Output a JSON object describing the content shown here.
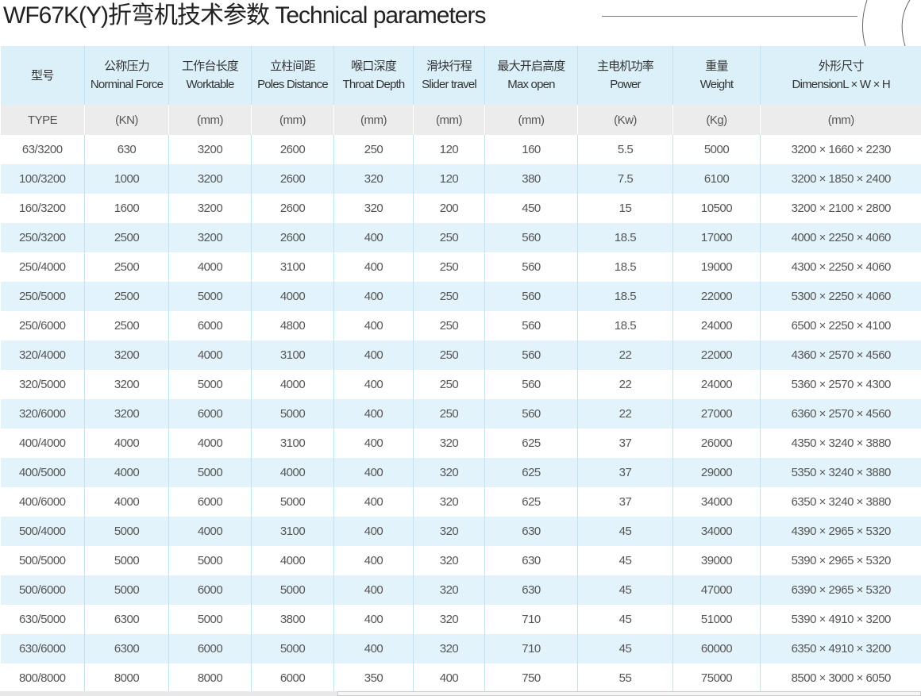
{
  "title": "WF67K(Y)折弯机技术参数 Technical parameters",
  "columns": [
    {
      "cn": "型号",
      "en": "",
      "unit": "TYPE"
    },
    {
      "cn": "公称压力",
      "en": "Norminal Force",
      "unit": "(KN)"
    },
    {
      "cn": "工作台长度",
      "en": "Worktable",
      "unit": "(mm)"
    },
    {
      "cn": "立柱间距",
      "en": "Poles Distance",
      "unit": "(mm)"
    },
    {
      "cn": "喉口深度",
      "en": "Throat Depth",
      "unit": "(mm)"
    },
    {
      "cn": "滑块行程",
      "en": "Slider travel",
      "unit": "(mm)"
    },
    {
      "cn": "最大开启高度",
      "en": "Max open",
      "unit": "(mm)"
    },
    {
      "cn": "主电机功率",
      "en": "Power",
      "unit": "(Kw)"
    },
    {
      "cn": "重量",
      "en": "Weight",
      "unit": "(Kg)"
    },
    {
      "cn": "外形尺寸",
      "en": "DimensionL × W × H",
      "unit": "(mm)"
    }
  ],
  "rows": [
    [
      "63/3200",
      "630",
      "3200",
      "2600",
      "250",
      "120",
      "160",
      "5.5",
      "5000",
      "3200 × 1660 × 2230"
    ],
    [
      "100/3200",
      "1000",
      "3200",
      "2600",
      "320",
      "120",
      "380",
      "7.5",
      "6100",
      "3200 × 1850 × 2400"
    ],
    [
      "160/3200",
      "1600",
      "3200",
      "2600",
      "320",
      "200",
      "450",
      "15",
      "10500",
      "3200 × 2100 × 2800"
    ],
    [
      "250/3200",
      "2500",
      "3200",
      "2600",
      "400",
      "250",
      "560",
      "18.5",
      "17000",
      "4000 × 2250 × 4060"
    ],
    [
      "250/4000",
      "2500",
      "4000",
      "3100",
      "400",
      "250",
      "560",
      "18.5",
      "19000",
      "4300 × 2250 × 4060"
    ],
    [
      "250/5000",
      "2500",
      "5000",
      "4000",
      "400",
      "250",
      "560",
      "18.5",
      "22000",
      "5300 × 2250 × 4060"
    ],
    [
      "250/6000",
      "2500",
      "6000",
      "4800",
      "400",
      "250",
      "560",
      "18.5",
      "24000",
      "6500 × 2250 × 4100"
    ],
    [
      "320/4000",
      "3200",
      "4000",
      "3100",
      "400",
      "250",
      "560",
      "22",
      "22000",
      "4360 × 2570 × 4560"
    ],
    [
      "320/5000",
      "3200",
      "5000",
      "4000",
      "400",
      "250",
      "560",
      "22",
      "24000",
      "5360 × 2570 × 4300"
    ],
    [
      "320/6000",
      "3200",
      "6000",
      "5000",
      "400",
      "250",
      "560",
      "22",
      "27000",
      "6360 × 2570 × 4560"
    ],
    [
      "400/4000",
      "4000",
      "4000",
      "3100",
      "400",
      "320",
      "625",
      "37",
      "26000",
      "4350 × 3240 × 3880"
    ],
    [
      "400/5000",
      "4000",
      "5000",
      "4000",
      "400",
      "320",
      "625",
      "37",
      "29000",
      "5350 × 3240 × 3880"
    ],
    [
      "400/6000",
      "4000",
      "6000",
      "5000",
      "400",
      "320",
      "625",
      "37",
      "34000",
      "6350 × 3240 × 3880"
    ],
    [
      "500/4000",
      "5000",
      "4000",
      "3100",
      "400",
      "320",
      "630",
      "45",
      "34000",
      "4390 × 2965 × 5320"
    ],
    [
      "500/5000",
      "5000",
      "5000",
      "4000",
      "400",
      "320",
      "630",
      "45",
      "39000",
      "5390 × 2965 × 5320"
    ],
    [
      "500/6000",
      "5000",
      "6000",
      "5000",
      "400",
      "320",
      "630",
      "45",
      "47000",
      "6390 × 2965 × 5320"
    ],
    [
      "630/5000",
      "6300",
      "5000",
      "3800",
      "400",
      "320",
      "710",
      "45",
      "51000",
      "5390 × 4910 × 3200"
    ],
    [
      "630/6000",
      "6300",
      "6000",
      "5000",
      "400",
      "320",
      "710",
      "45",
      "60000",
      "6350 × 4910 × 3200"
    ],
    [
      "800/8000",
      "8000",
      "8000",
      "6000",
      "350",
      "400",
      "750",
      "55",
      "75000",
      "8500 × 3000 × 6050"
    ]
  ],
  "colors": {
    "header_bg": "#dcf0fa",
    "unit_bg": "#ececec",
    "stripe_bg": "#e3f3fb",
    "grid": "#bfe3f2"
  }
}
